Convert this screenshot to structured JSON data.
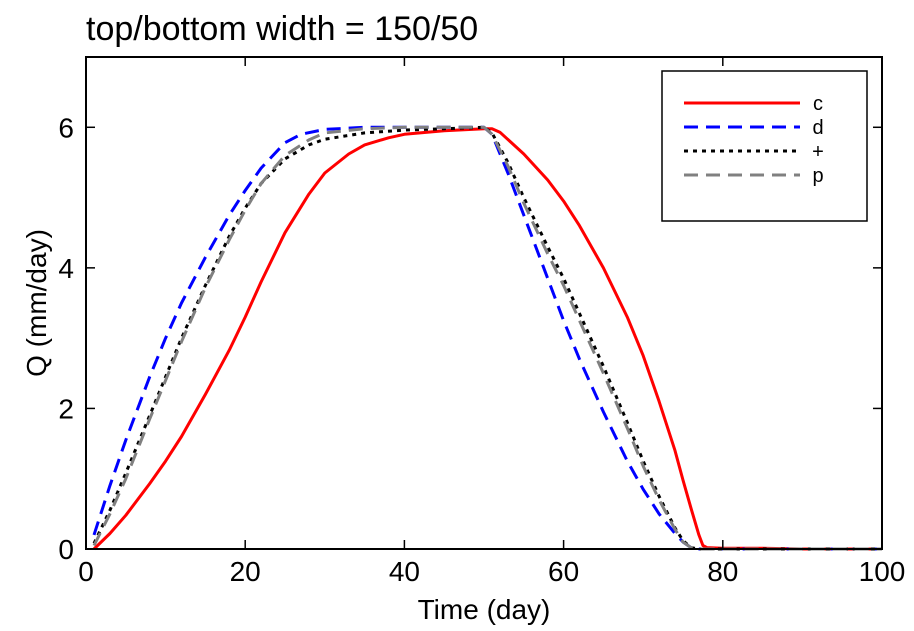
{
  "chart_data": {
    "type": "line",
    "title": "top/bottom width = 150/50",
    "xlabel": "Time (day)",
    "ylabel": "Q (mm/day)",
    "xlim": [
      0,
      100
    ],
    "ylim": [
      0,
      7
    ],
    "xticks": [
      0,
      20,
      40,
      60,
      80,
      100
    ],
    "yticks": [
      0,
      2,
      4,
      6
    ],
    "xtick_labels": [
      "0",
      "20",
      "40",
      "60",
      "80",
      "100"
    ],
    "ytick_labels": [
      "0",
      "2",
      "4",
      "6"
    ],
    "grid": false,
    "legend_position": "top-right",
    "series": [
      {
        "name": "c",
        "color": "#ff0000",
        "dash": "solid",
        "x": [
          1,
          3,
          5,
          8,
          10,
          12,
          15,
          18,
          20,
          22,
          25,
          28,
          30,
          33,
          35,
          38,
          40,
          45,
          50,
          51,
          52,
          55,
          58,
          60,
          62,
          65,
          68,
          70,
          72,
          74,
          75,
          76,
          77,
          77.5,
          78,
          80,
          85,
          90,
          95,
          100
        ],
        "y": [
          0,
          0.22,
          0.48,
          0.93,
          1.25,
          1.6,
          2.2,
          2.83,
          3.3,
          3.8,
          4.5,
          5.05,
          5.35,
          5.62,
          5.75,
          5.85,
          5.9,
          5.95,
          5.98,
          5.98,
          5.93,
          5.62,
          5.25,
          4.95,
          4.6,
          4.0,
          3.3,
          2.75,
          2.1,
          1.4,
          0.98,
          0.58,
          0.2,
          0.05,
          0.02,
          0.01,
          0.01,
          0,
          0,
          0
        ]
      },
      {
        "name": "d",
        "color": "#0000ff",
        "dash": "dashed",
        "x": [
          1,
          3,
          5,
          8,
          10,
          12,
          15,
          18,
          20,
          22,
          25,
          27,
          30,
          35,
          40,
          45,
          50,
          51,
          53,
          55,
          58,
          60,
          62,
          65,
          68,
          70,
          72,
          74,
          75,
          76,
          77,
          80,
          90,
          100
        ],
        "y": [
          0.2,
          0.9,
          1.55,
          2.45,
          3.0,
          3.5,
          4.15,
          4.75,
          5.1,
          5.42,
          5.78,
          5.9,
          5.97,
          6.0,
          6.0,
          6.0,
          6.0,
          5.9,
          5.35,
          4.75,
          3.85,
          3.25,
          2.7,
          1.95,
          1.25,
          0.85,
          0.5,
          0.22,
          0.1,
          0.02,
          0.0,
          0,
          0,
          0
        ]
      },
      {
        "name": "+",
        "color": "#000000",
        "dash": "dotted",
        "x": [
          1,
          3,
          5,
          8,
          10,
          12,
          15,
          18,
          20,
          22,
          25,
          28,
          30,
          35,
          40,
          45,
          50,
          51,
          53,
          55,
          58,
          60,
          62,
          65,
          68,
          70,
          72,
          74,
          75,
          76,
          77,
          80,
          90,
          100
        ],
        "y": [
          0.08,
          0.55,
          1.08,
          1.9,
          2.45,
          3.0,
          3.75,
          4.45,
          4.85,
          5.2,
          5.55,
          5.75,
          5.83,
          5.92,
          5.96,
          5.98,
          6.0,
          5.92,
          5.5,
          5.0,
          4.3,
          3.85,
          3.35,
          2.6,
          1.8,
          1.25,
          0.75,
          0.3,
          0.12,
          0.02,
          0.0,
          0,
          0,
          0
        ]
      },
      {
        "name": "p",
        "color": "#808080",
        "dash": "dashed",
        "x": [
          1,
          3,
          5,
          8,
          10,
          12,
          15,
          18,
          20,
          22,
          25,
          28,
          30,
          35,
          40,
          45,
          50,
          51,
          53,
          55,
          58,
          60,
          62,
          65,
          68,
          70,
          72,
          74,
          75,
          76,
          77,
          80,
          90,
          100
        ],
        "y": [
          0.05,
          0.5,
          1.0,
          1.85,
          2.4,
          2.95,
          3.72,
          4.4,
          4.82,
          5.2,
          5.6,
          5.82,
          5.92,
          5.98,
          6.0,
          6.0,
          6.0,
          5.9,
          5.45,
          4.92,
          4.2,
          3.75,
          3.25,
          2.5,
          1.72,
          1.18,
          0.7,
          0.28,
          0.1,
          0.02,
          0.0,
          0,
          0,
          0
        ]
      }
    ]
  }
}
